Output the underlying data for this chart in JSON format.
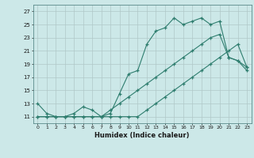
{
  "xlabel": "Humidex (Indice chaleur)",
  "ylabel": "",
  "bg_color": "#cce8e8",
  "grid_color": "#b0c8c8",
  "line_color": "#2e7d6e",
  "xlim": [
    -0.5,
    23.5
  ],
  "ylim": [
    10.0,
    28.0
  ],
  "xticks": [
    0,
    1,
    2,
    3,
    4,
    5,
    6,
    7,
    8,
    9,
    10,
    11,
    12,
    13,
    14,
    15,
    16,
    17,
    18,
    19,
    20,
    21,
    22,
    23
  ],
  "yticks": [
    11,
    13,
    15,
    17,
    19,
    21,
    23,
    25,
    27
  ],
  "line1_x": [
    0,
    1,
    2,
    3,
    4,
    5,
    6,
    7,
    8,
    9,
    10,
    11,
    12,
    13,
    14,
    15,
    16,
    17,
    18,
    19,
    20,
    21,
    22,
    23
  ],
  "line1_y": [
    13,
    11.5,
    11,
    11,
    11.5,
    12.5,
    12,
    11,
    11.5,
    14.5,
    17.5,
    18,
    22,
    24,
    24.5,
    26,
    25,
    25.5,
    26,
    25,
    25.5,
    20,
    19.5,
    18
  ],
  "line2_x": [
    0,
    1,
    2,
    3,
    4,
    5,
    6,
    7,
    8,
    9,
    10,
    11,
    12,
    13,
    14,
    15,
    16,
    17,
    18,
    19,
    20,
    21,
    22,
    23
  ],
  "line2_y": [
    11,
    11,
    11,
    11,
    11,
    11,
    11,
    11,
    12,
    13,
    14,
    15,
    16,
    17,
    18,
    19,
    20,
    21,
    22,
    23,
    23.5,
    20,
    19.5,
    18.5
  ],
  "line3_x": [
    0,
    1,
    2,
    3,
    4,
    5,
    6,
    7,
    8,
    9,
    10,
    11,
    12,
    13,
    14,
    15,
    16,
    17,
    18,
    19,
    20,
    21,
    22,
    23
  ],
  "line3_y": [
    11,
    11,
    11,
    11,
    11,
    11,
    11,
    11,
    11,
    11,
    11,
    11,
    12,
    13,
    14,
    15,
    16,
    17,
    18,
    19,
    20,
    21,
    22,
    18.5
  ]
}
